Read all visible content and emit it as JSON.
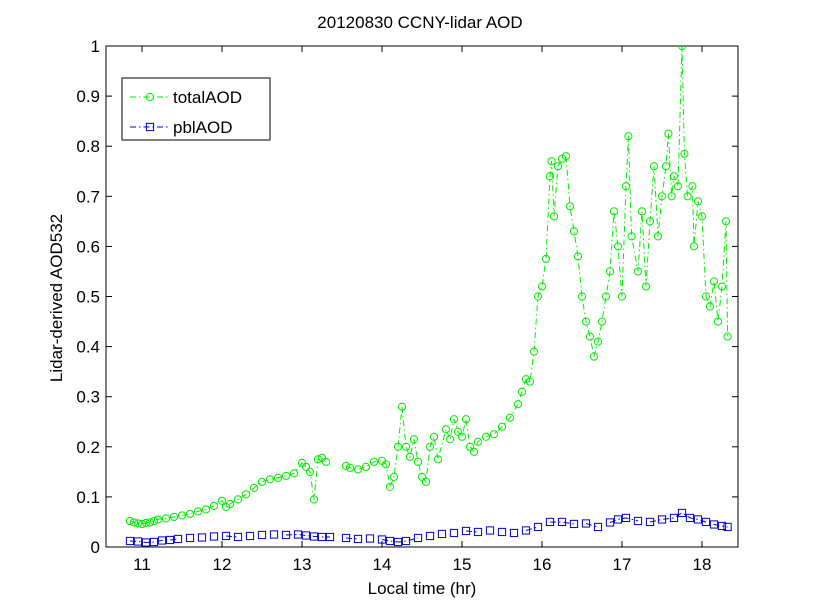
{
  "chart_data": {
    "type": "line",
    "title": "20120830 CCNY-lidar AOD",
    "xlabel": "Local time (hr)",
    "ylabel": "Lidar-derived AOD532",
    "xlim": [
      10.55,
      18.45
    ],
    "ylim": [
      0,
      1
    ],
    "xticks": [
      11,
      12,
      13,
      14,
      15,
      16,
      17,
      18
    ],
    "yticks": [
      0,
      0.1,
      0.2,
      0.3,
      0.4,
      0.5,
      0.6,
      0.7,
      0.8,
      0.9,
      1
    ],
    "ytick_labels": [
      "0",
      "0.1",
      "0.2",
      "0.3",
      "0.4",
      "0.5",
      "0.6",
      "0.7",
      "0.8",
      "0.9",
      "1"
    ],
    "grid": false,
    "legend_position": "top-left",
    "series": [
      {
        "name": "totalAOD",
        "color": "#00ee00",
        "marker": "circle",
        "line_style": "dash-dot",
        "points": [
          [
            10.85,
            0.052
          ],
          [
            10.9,
            0.049
          ],
          [
            10.95,
            0.047
          ],
          [
            11.0,
            0.046
          ],
          [
            11.05,
            0.048
          ],
          [
            11.1,
            0.049
          ],
          [
            11.15,
            0.052
          ],
          [
            11.2,
            0.055
          ],
          [
            11.3,
            0.057
          ],
          [
            11.4,
            0.06
          ],
          [
            11.5,
            0.063
          ],
          [
            11.6,
            0.066
          ],
          [
            11.7,
            0.071
          ],
          [
            11.8,
            0.075
          ],
          [
            11.9,
            0.082
          ],
          [
            12.0,
            0.092
          ],
          [
            12.05,
            0.08
          ],
          [
            12.1,
            0.086
          ],
          [
            12.2,
            0.095
          ],
          [
            12.3,
            0.105
          ],
          [
            12.4,
            0.118
          ],
          [
            12.5,
            0.13
          ],
          [
            12.6,
            0.135
          ],
          [
            12.7,
            0.138
          ],
          [
            12.8,
            0.142
          ],
          [
            12.9,
            0.147
          ],
          [
            13.0,
            0.168
          ],
          [
            13.05,
            0.16
          ],
          [
            13.1,
            0.15
          ],
          [
            13.15,
            0.095
          ],
          [
            13.2,
            0.175
          ],
          [
            13.25,
            0.178
          ],
          [
            13.3,
            0.17
          ],
          [
            13.55,
            0.162
          ],
          [
            13.6,
            0.158
          ],
          [
            13.7,
            0.155
          ],
          [
            13.8,
            0.16
          ],
          [
            13.9,
            0.17
          ],
          [
            14.0,
            0.172
          ],
          [
            14.05,
            0.165
          ],
          [
            14.1,
            0.12
          ],
          [
            14.15,
            0.14
          ],
          [
            14.2,
            0.2
          ],
          [
            14.25,
            0.28
          ],
          [
            14.3,
            0.2
          ],
          [
            14.35,
            0.18
          ],
          [
            14.4,
            0.215
          ],
          [
            14.45,
            0.17
          ],
          [
            14.5,
            0.14
          ],
          [
            14.55,
            0.13
          ],
          [
            14.6,
            0.2
          ],
          [
            14.65,
            0.22
          ],
          [
            14.7,
            0.175
          ],
          [
            14.8,
            0.235
          ],
          [
            14.85,
            0.215
          ],
          [
            14.9,
            0.255
          ],
          [
            14.95,
            0.23
          ],
          [
            15.0,
            0.22
          ],
          [
            15.05,
            0.255
          ],
          [
            15.1,
            0.2
          ],
          [
            15.15,
            0.19
          ],
          [
            15.2,
            0.21
          ],
          [
            15.3,
            0.22
          ],
          [
            15.4,
            0.225
          ],
          [
            15.5,
            0.24
          ],
          [
            15.6,
            0.258
          ],
          [
            15.7,
            0.285
          ],
          [
            15.75,
            0.31
          ],
          [
            15.8,
            0.335
          ],
          [
            15.85,
            0.33
          ],
          [
            15.9,
            0.39
          ],
          [
            15.95,
            0.5
          ],
          [
            16.0,
            0.52
          ],
          [
            16.05,
            0.575
          ],
          [
            16.1,
            0.74
          ],
          [
            16.12,
            0.77
          ],
          [
            16.15,
            0.66
          ],
          [
            16.2,
            0.76
          ],
          [
            16.25,
            0.775
          ],
          [
            16.3,
            0.78
          ],
          [
            16.35,
            0.68
          ],
          [
            16.4,
            0.63
          ],
          [
            16.45,
            0.58
          ],
          [
            16.5,
            0.5
          ],
          [
            16.55,
            0.45
          ],
          [
            16.6,
            0.42
          ],
          [
            16.65,
            0.38
          ],
          [
            16.7,
            0.41
          ],
          [
            16.75,
            0.45
          ],
          [
            16.8,
            0.5
          ],
          [
            16.85,
            0.55
          ],
          [
            16.9,
            0.67
          ],
          [
            16.95,
            0.6
          ],
          [
            17.0,
            0.5
          ],
          [
            17.05,
            0.72
          ],
          [
            17.08,
            0.82
          ],
          [
            17.12,
            0.62
          ],
          [
            17.2,
            0.55
          ],
          [
            17.25,
            0.67
          ],
          [
            17.3,
            0.52
          ],
          [
            17.35,
            0.65
          ],
          [
            17.4,
            0.76
          ],
          [
            17.45,
            0.62
          ],
          [
            17.5,
            0.7
          ],
          [
            17.55,
            0.76
          ],
          [
            17.58,
            0.825
          ],
          [
            17.62,
            0.7
          ],
          [
            17.65,
            0.74
          ],
          [
            17.7,
            0.72
          ],
          [
            17.75,
            1.0
          ],
          [
            17.78,
            0.785
          ],
          [
            17.82,
            0.7
          ],
          [
            17.88,
            0.72
          ],
          [
            17.9,
            0.6
          ],
          [
            17.95,
            0.69
          ],
          [
            18.0,
            0.66
          ],
          [
            18.05,
            0.5
          ],
          [
            18.1,
            0.48
          ],
          [
            18.15,
            0.53
          ],
          [
            18.2,
            0.45
          ],
          [
            18.25,
            0.52
          ],
          [
            18.3,
            0.65
          ],
          [
            18.32,
            0.42
          ]
        ]
      },
      {
        "name": "pblAOD",
        "color": "#0000cc",
        "marker": "square",
        "line_style": "dash-dot",
        "points": [
          [
            10.85,
            0.012
          ],
          [
            10.95,
            0.011
          ],
          [
            11.05,
            0.009
          ],
          [
            11.15,
            0.01
          ],
          [
            11.25,
            0.013
          ],
          [
            11.35,
            0.014
          ],
          [
            11.45,
            0.016
          ],
          [
            11.6,
            0.018
          ],
          [
            11.75,
            0.019
          ],
          [
            11.9,
            0.021
          ],
          [
            12.05,
            0.022
          ],
          [
            12.2,
            0.02
          ],
          [
            12.35,
            0.022
          ],
          [
            12.5,
            0.024
          ],
          [
            12.65,
            0.025
          ],
          [
            12.8,
            0.024
          ],
          [
            12.95,
            0.025
          ],
          [
            13.05,
            0.023
          ],
          [
            13.15,
            0.021
          ],
          [
            13.25,
            0.02
          ],
          [
            13.35,
            0.02
          ],
          [
            13.55,
            0.018
          ],
          [
            13.7,
            0.016
          ],
          [
            13.85,
            0.017
          ],
          [
            14.0,
            0.015
          ],
          [
            14.1,
            0.012
          ],
          [
            14.2,
            0.01
          ],
          [
            14.3,
            0.012
          ],
          [
            14.45,
            0.018
          ],
          [
            14.6,
            0.022
          ],
          [
            14.75,
            0.026
          ],
          [
            14.9,
            0.028
          ],
          [
            15.05,
            0.032
          ],
          [
            15.2,
            0.03
          ],
          [
            15.35,
            0.033
          ],
          [
            15.5,
            0.03
          ],
          [
            15.65,
            0.028
          ],
          [
            15.8,
            0.033
          ],
          [
            15.95,
            0.04
          ],
          [
            16.1,
            0.05
          ],
          [
            16.25,
            0.05
          ],
          [
            16.4,
            0.046
          ],
          [
            16.55,
            0.047
          ],
          [
            16.7,
            0.04
          ],
          [
            16.85,
            0.049
          ],
          [
            16.95,
            0.055
          ],
          [
            17.05,
            0.058
          ],
          [
            17.2,
            0.052
          ],
          [
            17.35,
            0.05
          ],
          [
            17.5,
            0.055
          ],
          [
            17.65,
            0.058
          ],
          [
            17.75,
            0.068
          ],
          [
            17.85,
            0.058
          ],
          [
            17.95,
            0.055
          ],
          [
            18.05,
            0.05
          ],
          [
            18.15,
            0.045
          ],
          [
            18.25,
            0.042
          ],
          [
            18.32,
            0.04
          ]
        ]
      }
    ]
  }
}
